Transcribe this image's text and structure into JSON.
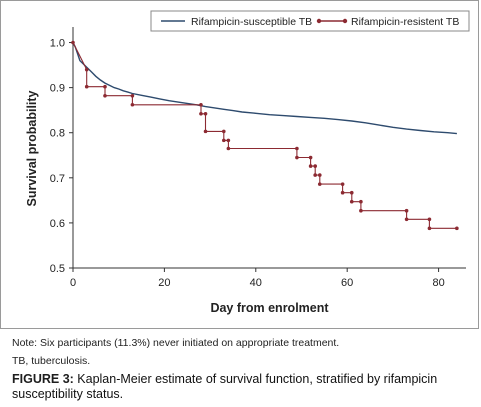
{
  "chart_data": {
    "type": "line",
    "subtype": "kaplan-meier step curve",
    "xlabel": "Day from enrolment",
    "ylabel": "Survival probability",
    "xlim": [
      0,
      86
    ],
    "ylim": [
      0.5,
      1.03
    ],
    "xticks": [
      0,
      20,
      40,
      60,
      80
    ],
    "yticks": [
      0.5,
      0.6,
      0.7,
      0.8,
      0.9,
      1.0
    ],
    "ytick_labels": [
      "0.5",
      "0.6",
      "0.7",
      "0.8",
      "0.9",
      "1.0"
    ],
    "grid": false,
    "legend_position": "top",
    "series": [
      {
        "name": "Rifampicin-susceptible TB",
        "color": "#2e4b6e",
        "markers": false,
        "points": [
          [
            0,
            1.0
          ],
          [
            0.5,
            0.99
          ],
          [
            1,
            0.975
          ],
          [
            1.5,
            0.96
          ],
          [
            2,
            0.955
          ],
          [
            3,
            0.945
          ],
          [
            4,
            0.935
          ],
          [
            5,
            0.925
          ],
          [
            6,
            0.917
          ],
          [
            7,
            0.91
          ],
          [
            8,
            0.905
          ],
          [
            9,
            0.9
          ],
          [
            10,
            0.897
          ],
          [
            11,
            0.893
          ],
          [
            12,
            0.89
          ],
          [
            13,
            0.887
          ],
          [
            15,
            0.883
          ],
          [
            17,
            0.879
          ],
          [
            19,
            0.875
          ],
          [
            21,
            0.871
          ],
          [
            23,
            0.868
          ],
          [
            25,
            0.865
          ],
          [
            27,
            0.862
          ],
          [
            29,
            0.858
          ],
          [
            31,
            0.855
          ],
          [
            33,
            0.852
          ],
          [
            35,
            0.849
          ],
          [
            37,
            0.846
          ],
          [
            40,
            0.843
          ],
          [
            43,
            0.84
          ],
          [
            46,
            0.838
          ],
          [
            49,
            0.836
          ],
          [
            52,
            0.834
          ],
          [
            55,
            0.832
          ],
          [
            58,
            0.829
          ],
          [
            61,
            0.826
          ],
          [
            64,
            0.822
          ],
          [
            67,
            0.817
          ],
          [
            70,
            0.812
          ],
          [
            73,
            0.808
          ],
          [
            76,
            0.805
          ],
          [
            79,
            0.802
          ],
          [
            82,
            0.8
          ],
          [
            84,
            0.798
          ]
        ]
      },
      {
        "name": "Rifampicin-resistent TB",
        "color": "#8c2a32",
        "markers": true,
        "points": [
          [
            0,
            1.0
          ],
          [
            1,
            0.98
          ],
          [
            3,
            0.94
          ],
          [
            3,
            0.902
          ],
          [
            7,
            0.902
          ],
          [
            7,
            0.882
          ],
          [
            13,
            0.882
          ],
          [
            13,
            0.862
          ],
          [
            28,
            0.862
          ],
          [
            28,
            0.842
          ],
          [
            29,
            0.842
          ],
          [
            29,
            0.803
          ],
          [
            33,
            0.803
          ],
          [
            33,
            0.783
          ],
          [
            34,
            0.783
          ],
          [
            34,
            0.765
          ],
          [
            49,
            0.765
          ],
          [
            49,
            0.745
          ],
          [
            52,
            0.745
          ],
          [
            52,
            0.726
          ],
          [
            53,
            0.726
          ],
          [
            53,
            0.706
          ],
          [
            54,
            0.706
          ],
          [
            54,
            0.686
          ],
          [
            59,
            0.686
          ],
          [
            59,
            0.667
          ],
          [
            61,
            0.667
          ],
          [
            61,
            0.647
          ],
          [
            63,
            0.647
          ],
          [
            63,
            0.627
          ],
          [
            73,
            0.627
          ],
          [
            73,
            0.608
          ],
          [
            78,
            0.608
          ],
          [
            78,
            0.588
          ],
          [
            84,
            0.588
          ]
        ]
      }
    ]
  },
  "note": "Note: Six participants (11.3%) never initiated on appropriate treatment.",
  "abbreviation": "TB, tuberculosis.",
  "caption": {
    "label": "FIGURE 3:",
    "text": " Kaplan-Meier estimate of survival function, stratified by rifampicin susceptibility status."
  }
}
